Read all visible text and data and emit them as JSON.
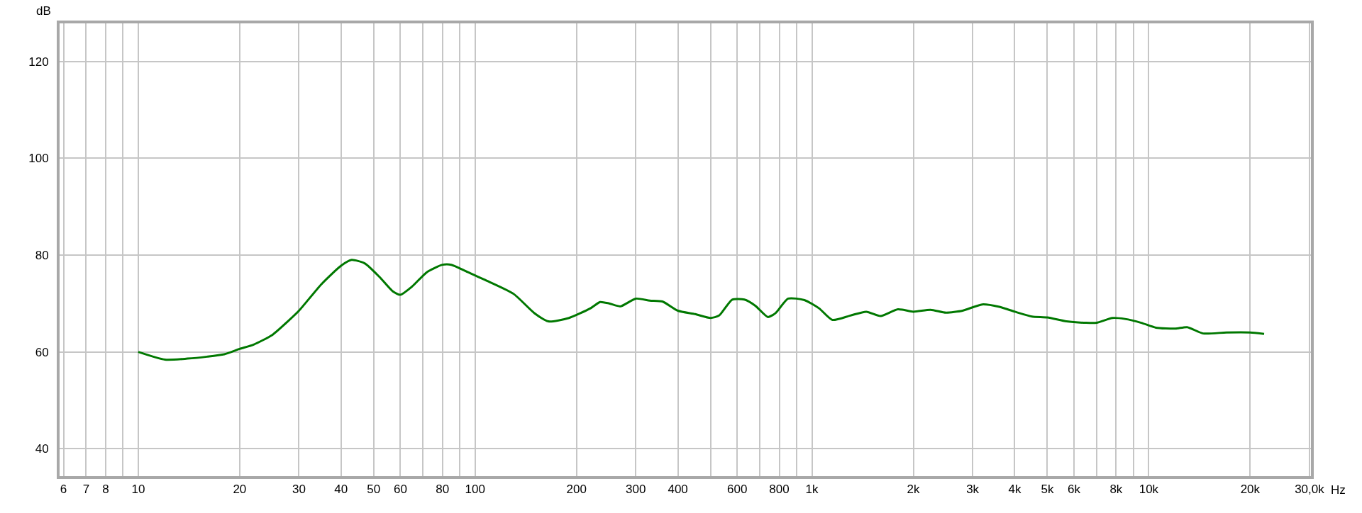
{
  "chart_data": {
    "type": "line",
    "xlabel": "Hz",
    "ylabel": "dB",
    "log": "x",
    "grid": true,
    "marker": "none",
    "line_style": "solid",
    "xlim": [
      5.84,
      30300
    ],
    "ylim": [
      34.3,
      127.9
    ],
    "xticks": [
      6,
      7,
      8,
      {
        "value": 9,
        "label": null
      },
      10,
      20,
      30,
      40,
      50,
      60,
      {
        "value": 70,
        "label": null
      },
      80,
      {
        "value": 90,
        "label": null
      },
      100,
      200,
      300,
      400,
      {
        "value": 500,
        "label": null
      },
      600,
      {
        "value": 700,
        "label": null
      },
      800,
      {
        "value": 900,
        "label": null
      },
      {
        "value": 1000,
        "label": "1k"
      },
      {
        "value": 2000,
        "label": "2k"
      },
      {
        "value": 3000,
        "label": "3k"
      },
      {
        "value": 4000,
        "label": "4k"
      },
      {
        "value": 5000,
        "label": "5k"
      },
      {
        "value": 6000,
        "label": "6k"
      },
      {
        "value": 7000,
        "label": null
      },
      {
        "value": 8000,
        "label": "8k"
      },
      {
        "value": 9000,
        "label": null
      },
      {
        "value": 10000,
        "label": "10k"
      },
      {
        "value": 20000,
        "label": "20k"
      },
      {
        "value": 30000,
        "label": "30,0k"
      }
    ],
    "yticks": [
      40,
      60,
      80,
      100,
      120
    ],
    "x": [
      10,
      12,
      14,
      16,
      18,
      20,
      22,
      25,
      28,
      30,
      35,
      40,
      43,
      47,
      52,
      57,
      60,
      65,
      72,
      80,
      85,
      95,
      110,
      130,
      150,
      165,
      190,
      220,
      235,
      250,
      270,
      300,
      330,
      360,
      400,
      450,
      500,
      530,
      580,
      630,
      680,
      740,
      780,
      850,
      950,
      1050,
      1150,
      1300,
      1450,
      1600,
      1800,
      2000,
      2250,
      2500,
      2800,
      3200,
      3600,
      4000,
      4500,
      5000,
      5700,
      6500,
      7000,
      7800,
      8500,
      9500,
      10500,
      12000,
      13000,
      14500,
      17000,
      20000,
      22000
    ],
    "series": [
      {
        "color": "#007800",
        "values": [
          60.0,
          58.4,
          58.6,
          59.0,
          59.5,
          60.6,
          61.5,
          63.5,
          66.5,
          68.5,
          74,
          77.8,
          79,
          78.3,
          75.5,
          72.5,
          71.8,
          73.5,
          76.5,
          78,
          78,
          76.5,
          74.5,
          72,
          68,
          66.3,
          67,
          69,
          70.3,
          70,
          69.4,
          71,
          70.6,
          70.4,
          68.5,
          67.8,
          67,
          67.5,
          70.8,
          70.8,
          69.5,
          67.2,
          68,
          71,
          70.7,
          69,
          66.6,
          67.5,
          68.3,
          67.4,
          68.8,
          68.3,
          68.7,
          68.1,
          68.5,
          69.8,
          69.3,
          68.3,
          67.3,
          67.1,
          66.3,
          66,
          66,
          67,
          66.8,
          66,
          65,
          64.8,
          65.1,
          63.8,
          64,
          64,
          63.7
        ]
      }
    ]
  }
}
